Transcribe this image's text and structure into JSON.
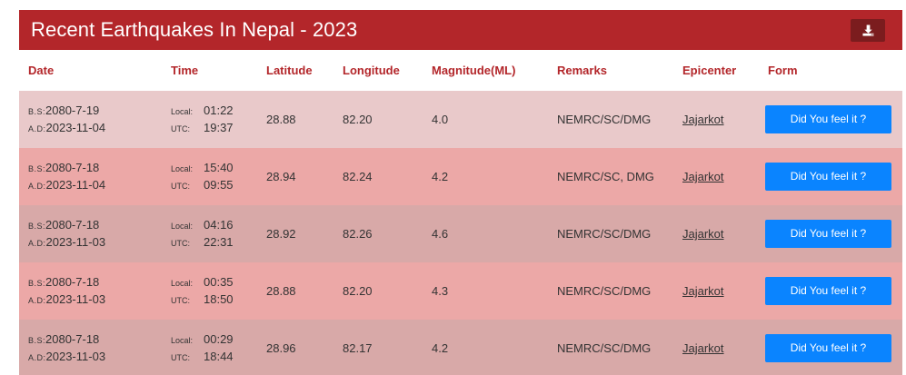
{
  "header": {
    "title": "Recent Earthquakes In Nepal - 2023",
    "download_icon": "download-icon"
  },
  "columns": [
    "Date",
    "Time",
    "Latitude",
    "Longitude",
    "Magnitude(ML)",
    "Remarks",
    "Epicenter",
    "Form"
  ],
  "labels": {
    "bs": "B.S:",
    "ad": "A.D:",
    "local": "Local:",
    "utc": "UTC:"
  },
  "form_button_label": "Did You feel it ?",
  "colors": {
    "header": "#b3262a",
    "row_backgrounds": [
      "#e9c9ca",
      "#eca8a7",
      "#d8a9a8",
      "#eca8a7",
      "#d8a9a8"
    ],
    "button": "#0a84ff"
  },
  "rows": [
    {
      "bs": "2080-7-19",
      "ad": "2023-11-04",
      "local": "01:22",
      "utc": "19:37",
      "lat": "28.88",
      "lon": "82.20",
      "mag": "4.0",
      "remarks": "NEMRC/SC/DMG",
      "epicenter": "Jajarkot"
    },
    {
      "bs": "2080-7-18",
      "ad": "2023-11-04",
      "local": "15:40",
      "utc": "09:55",
      "lat": "28.94",
      "lon": "82.24",
      "mag": "4.2",
      "remarks": "NEMRC/SC, DMG",
      "epicenter": "Jajarkot"
    },
    {
      "bs": "2080-7-18",
      "ad": "2023-11-03",
      "local": "04:16",
      "utc": "22:31",
      "lat": "28.92",
      "lon": "82.26",
      "mag": "4.6",
      "remarks": "NEMRC/SC/DMG",
      "epicenter": "Jajarkot"
    },
    {
      "bs": "2080-7-18",
      "ad": "2023-11-03",
      "local": "00:35",
      "utc": "18:50",
      "lat": "28.88",
      "lon": "82.20",
      "mag": "4.3",
      "remarks": "NEMRC/SC/DMG",
      "epicenter": "Jajarkot"
    },
    {
      "bs": "2080-7-18",
      "ad": "2023-11-03",
      "local": "00:29",
      "utc": "18:44",
      "lat": "28.96",
      "lon": "82.17",
      "mag": "4.2",
      "remarks": "NEMRC/SC/DMG",
      "epicenter": "Jajarkot"
    }
  ]
}
